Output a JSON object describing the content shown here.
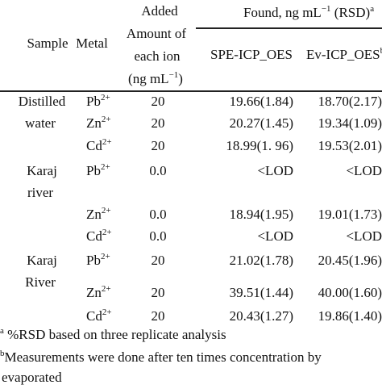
{
  "header": {
    "sample": "Sample",
    "metal": "Metal",
    "added_line1": "Added",
    "added_line2": "Amount of",
    "added_line3": "each ion",
    "added_line4": "(ng mL",
    "added_line4_sup": "−1",
    "added_line4_end": ")",
    "found_main": "Found, ng mL",
    "found_sup": "−1",
    "found_end": " (RSD)",
    "found_mark": "a",
    "spe": "SPE-ICP_OES",
    "ev": "Ev-ICP_OES",
    "ev_mark": "b"
  },
  "rows": [
    {
      "sample_l1": "Distilled",
      "sample_l2": "water",
      "metal": "Pb",
      "charge": "2+",
      "added": "20",
      "spe": "19.66(1.84)",
      "ev": "18.70(2.17)"
    },
    {
      "metal": "Zn",
      "charge": "2+",
      "added": "20",
      "spe": "20.27(1.45)",
      "ev": "19.34(1.09)"
    },
    {
      "metal": "Cd",
      "charge": "2+",
      "added": "20",
      "spe": "18.99(1. 96)",
      "ev": "19.53(2.01)"
    },
    {
      "sample_l1": "Karaj",
      "sample_l2": "river",
      "metal": "Pb",
      "charge": "2+",
      "added": "0.0",
      "spe": "<LOD",
      "ev": "<LOD"
    },
    {
      "metal": "Zn",
      "charge": "2+",
      "added": "0.0",
      "spe": "18.94(1.95)",
      "ev": "19.01(1.73)"
    },
    {
      "metal": "Cd",
      "charge": "2+",
      "added": "0.0",
      "spe": "<LOD",
      "ev": "<LOD"
    },
    {
      "sample_l1": "Karaj",
      "sample_l2": "River",
      "metal": "Pb",
      "charge": "2+",
      "added": "20",
      "spe": "21.02(1.78)",
      "ev": "20.45(1.96)"
    },
    {
      "metal": "Zn",
      "charge": "2+",
      "added": "20",
      "spe": "39.51(1.44)",
      "ev": "40.00(1.60)"
    },
    {
      "metal": "Cd",
      "charge": "2+",
      "added": "20",
      "spe": "20.43(1.27)",
      "ev": "19.86(1.40)"
    }
  ],
  "footnotes": {
    "a_mark": "a",
    "a_text": " %RSD based on three replicate analysis",
    "b_mark": "b",
    "b_text_l1": "Measurements were done after ten times concentration by",
    "b_text_l2": "evaporated"
  }
}
